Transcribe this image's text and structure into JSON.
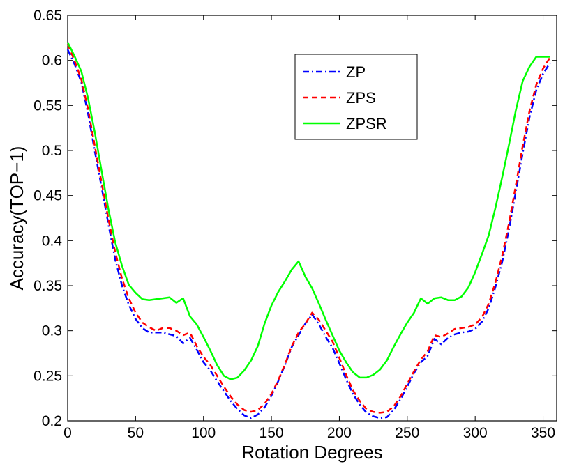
{
  "chart_data": {
    "type": "line",
    "title": "",
    "xlabel": "Rotation Degrees",
    "ylabel": "Accuracy(TOP−1)",
    "xlim": [
      0,
      360
    ],
    "ylim": [
      0.2,
      0.65
    ],
    "xticks": [
      0,
      50,
      100,
      150,
      200,
      250,
      300,
      350
    ],
    "yticks": [
      0.2,
      0.25,
      0.3,
      0.35,
      0.4,
      0.45,
      0.5,
      0.55,
      0.6,
      0.65
    ],
    "xtick_labels": [
      "0",
      "50",
      "100",
      "150",
      "200",
      "250",
      "300",
      "350"
    ],
    "ytick_labels": [
      "0.2",
      "0.25",
      "0.3",
      "0.35",
      "0.4",
      "0.45",
      "0.5",
      "0.55",
      "0.6",
      "0.65"
    ],
    "grid": false,
    "legend_position": "top-right",
    "x": [
      0,
      5,
      10,
      15,
      20,
      25,
      30,
      35,
      40,
      45,
      50,
      55,
      60,
      65,
      70,
      75,
      80,
      85,
      90,
      95,
      100,
      105,
      110,
      115,
      120,
      125,
      130,
      135,
      140,
      145,
      150,
      155,
      160,
      165,
      170,
      175,
      180,
      185,
      190,
      195,
      200,
      205,
      210,
      215,
      220,
      225,
      230,
      235,
      240,
      245,
      250,
      255,
      260,
      265,
      270,
      275,
      280,
      285,
      290,
      295,
      300,
      305,
      310,
      315,
      320,
      325,
      330,
      335,
      340,
      345,
      350,
      355
    ],
    "series": [
      {
        "name": "ZP",
        "color": "#0000ff",
        "style": "dashdot",
        "values": [
          0.612,
          0.596,
          0.576,
          0.541,
          0.499,
          0.459,
          0.418,
          0.379,
          0.35,
          0.329,
          0.313,
          0.303,
          0.298,
          0.298,
          0.298,
          0.296,
          0.294,
          0.286,
          0.292,
          0.279,
          0.265,
          0.256,
          0.244,
          0.233,
          0.222,
          0.213,
          0.206,
          0.203,
          0.207,
          0.215,
          0.228,
          0.244,
          0.262,
          0.282,
          0.295,
          0.308,
          0.318,
          0.307,
          0.293,
          0.281,
          0.264,
          0.246,
          0.23,
          0.218,
          0.209,
          0.205,
          0.203,
          0.204,
          0.212,
          0.224,
          0.238,
          0.253,
          0.265,
          0.272,
          0.291,
          0.285,
          0.292,
          0.296,
          0.298,
          0.299,
          0.302,
          0.31,
          0.325,
          0.349,
          0.377,
          0.413,
          0.455,
          0.497,
          0.537,
          0.567,
          0.585,
          0.597
        ]
      },
      {
        "name": "ZPS",
        "color": "#ff0000",
        "style": "dashed",
        "values": [
          0.618,
          0.6,
          0.579,
          0.546,
          0.505,
          0.464,
          0.424,
          0.387,
          0.358,
          0.336,
          0.32,
          0.309,
          0.304,
          0.3,
          0.303,
          0.303,
          0.3,
          0.295,
          0.298,
          0.283,
          0.271,
          0.262,
          0.25,
          0.238,
          0.227,
          0.218,
          0.212,
          0.21,
          0.212,
          0.219,
          0.23,
          0.245,
          0.263,
          0.283,
          0.298,
          0.308,
          0.32,
          0.312,
          0.3,
          0.288,
          0.27,
          0.251,
          0.234,
          0.222,
          0.213,
          0.21,
          0.209,
          0.21,
          0.216,
          0.227,
          0.241,
          0.255,
          0.268,
          0.277,
          0.295,
          0.293,
          0.297,
          0.302,
          0.303,
          0.304,
          0.307,
          0.315,
          0.33,
          0.354,
          0.384,
          0.42,
          0.462,
          0.505,
          0.544,
          0.573,
          0.591,
          0.603
        ]
      },
      {
        "name": "ZPSR",
        "color": "#00ff00",
        "style": "solid",
        "values": [
          0.62,
          0.605,
          0.588,
          0.558,
          0.52,
          0.477,
          0.435,
          0.398,
          0.372,
          0.351,
          0.342,
          0.335,
          0.334,
          0.335,
          0.336,
          0.337,
          0.331,
          0.336,
          0.316,
          0.307,
          0.293,
          0.278,
          0.262,
          0.25,
          0.246,
          0.248,
          0.256,
          0.267,
          0.283,
          0.308,
          0.328,
          0.343,
          0.355,
          0.368,
          0.377,
          0.36,
          0.347,
          0.33,
          0.312,
          0.295,
          0.278,
          0.265,
          0.254,
          0.248,
          0.248,
          0.251,
          0.257,
          0.267,
          0.282,
          0.296,
          0.309,
          0.32,
          0.336,
          0.33,
          0.336,
          0.337,
          0.334,
          0.334,
          0.338,
          0.348,
          0.365,
          0.385,
          0.406,
          0.437,
          0.471,
          0.507,
          0.545,
          0.577,
          0.593,
          0.604,
          0.604,
          0.604
        ]
      }
    ]
  }
}
